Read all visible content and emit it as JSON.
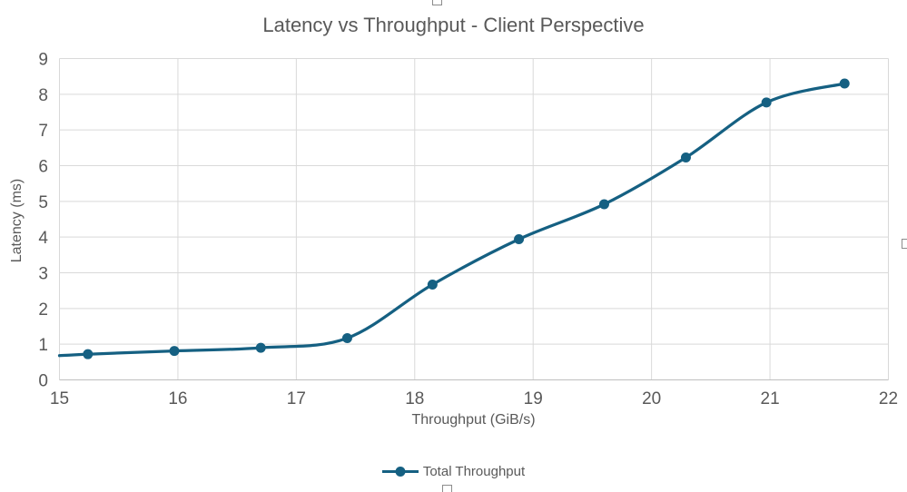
{
  "chart_data": {
    "type": "line",
    "title": "Latency vs Throughput - Client Perspective",
    "xlabel": "Throughput (GiB/s)",
    "ylabel": "Latency (ms)",
    "xlim": [
      15,
      22
    ],
    "ylim": [
      0,
      9
    ],
    "x_ticks": [
      "15",
      "16",
      "17",
      "18",
      "19",
      "20",
      "21",
      "22"
    ],
    "y_ticks": [
      "0",
      "1",
      "2",
      "3",
      "4",
      "5",
      "6",
      "7",
      "8",
      "9"
    ],
    "grid": true,
    "legend_position": "bottom-center",
    "series": [
      {
        "name": "Total Throughput",
        "color": "#156082",
        "smooth": true,
        "marker": "circle",
        "edge_start": [
          15.0,
          0.68
        ],
        "points": [
          [
            15.24,
            0.72
          ],
          [
            15.97,
            0.81
          ],
          [
            16.7,
            0.9
          ],
          [
            17.43,
            1.17
          ],
          [
            18.15,
            2.67
          ],
          [
            18.88,
            3.94
          ],
          [
            19.6,
            4.92
          ],
          [
            20.29,
            6.23
          ],
          [
            20.97,
            7.77
          ],
          [
            21.63,
            8.3
          ]
        ]
      }
    ]
  },
  "colors": {
    "series": "#156082",
    "text": "#595959",
    "gridline": "#D9D9D9",
    "axis_line": "#BFBFBF",
    "background": "#FFFFFF"
  }
}
